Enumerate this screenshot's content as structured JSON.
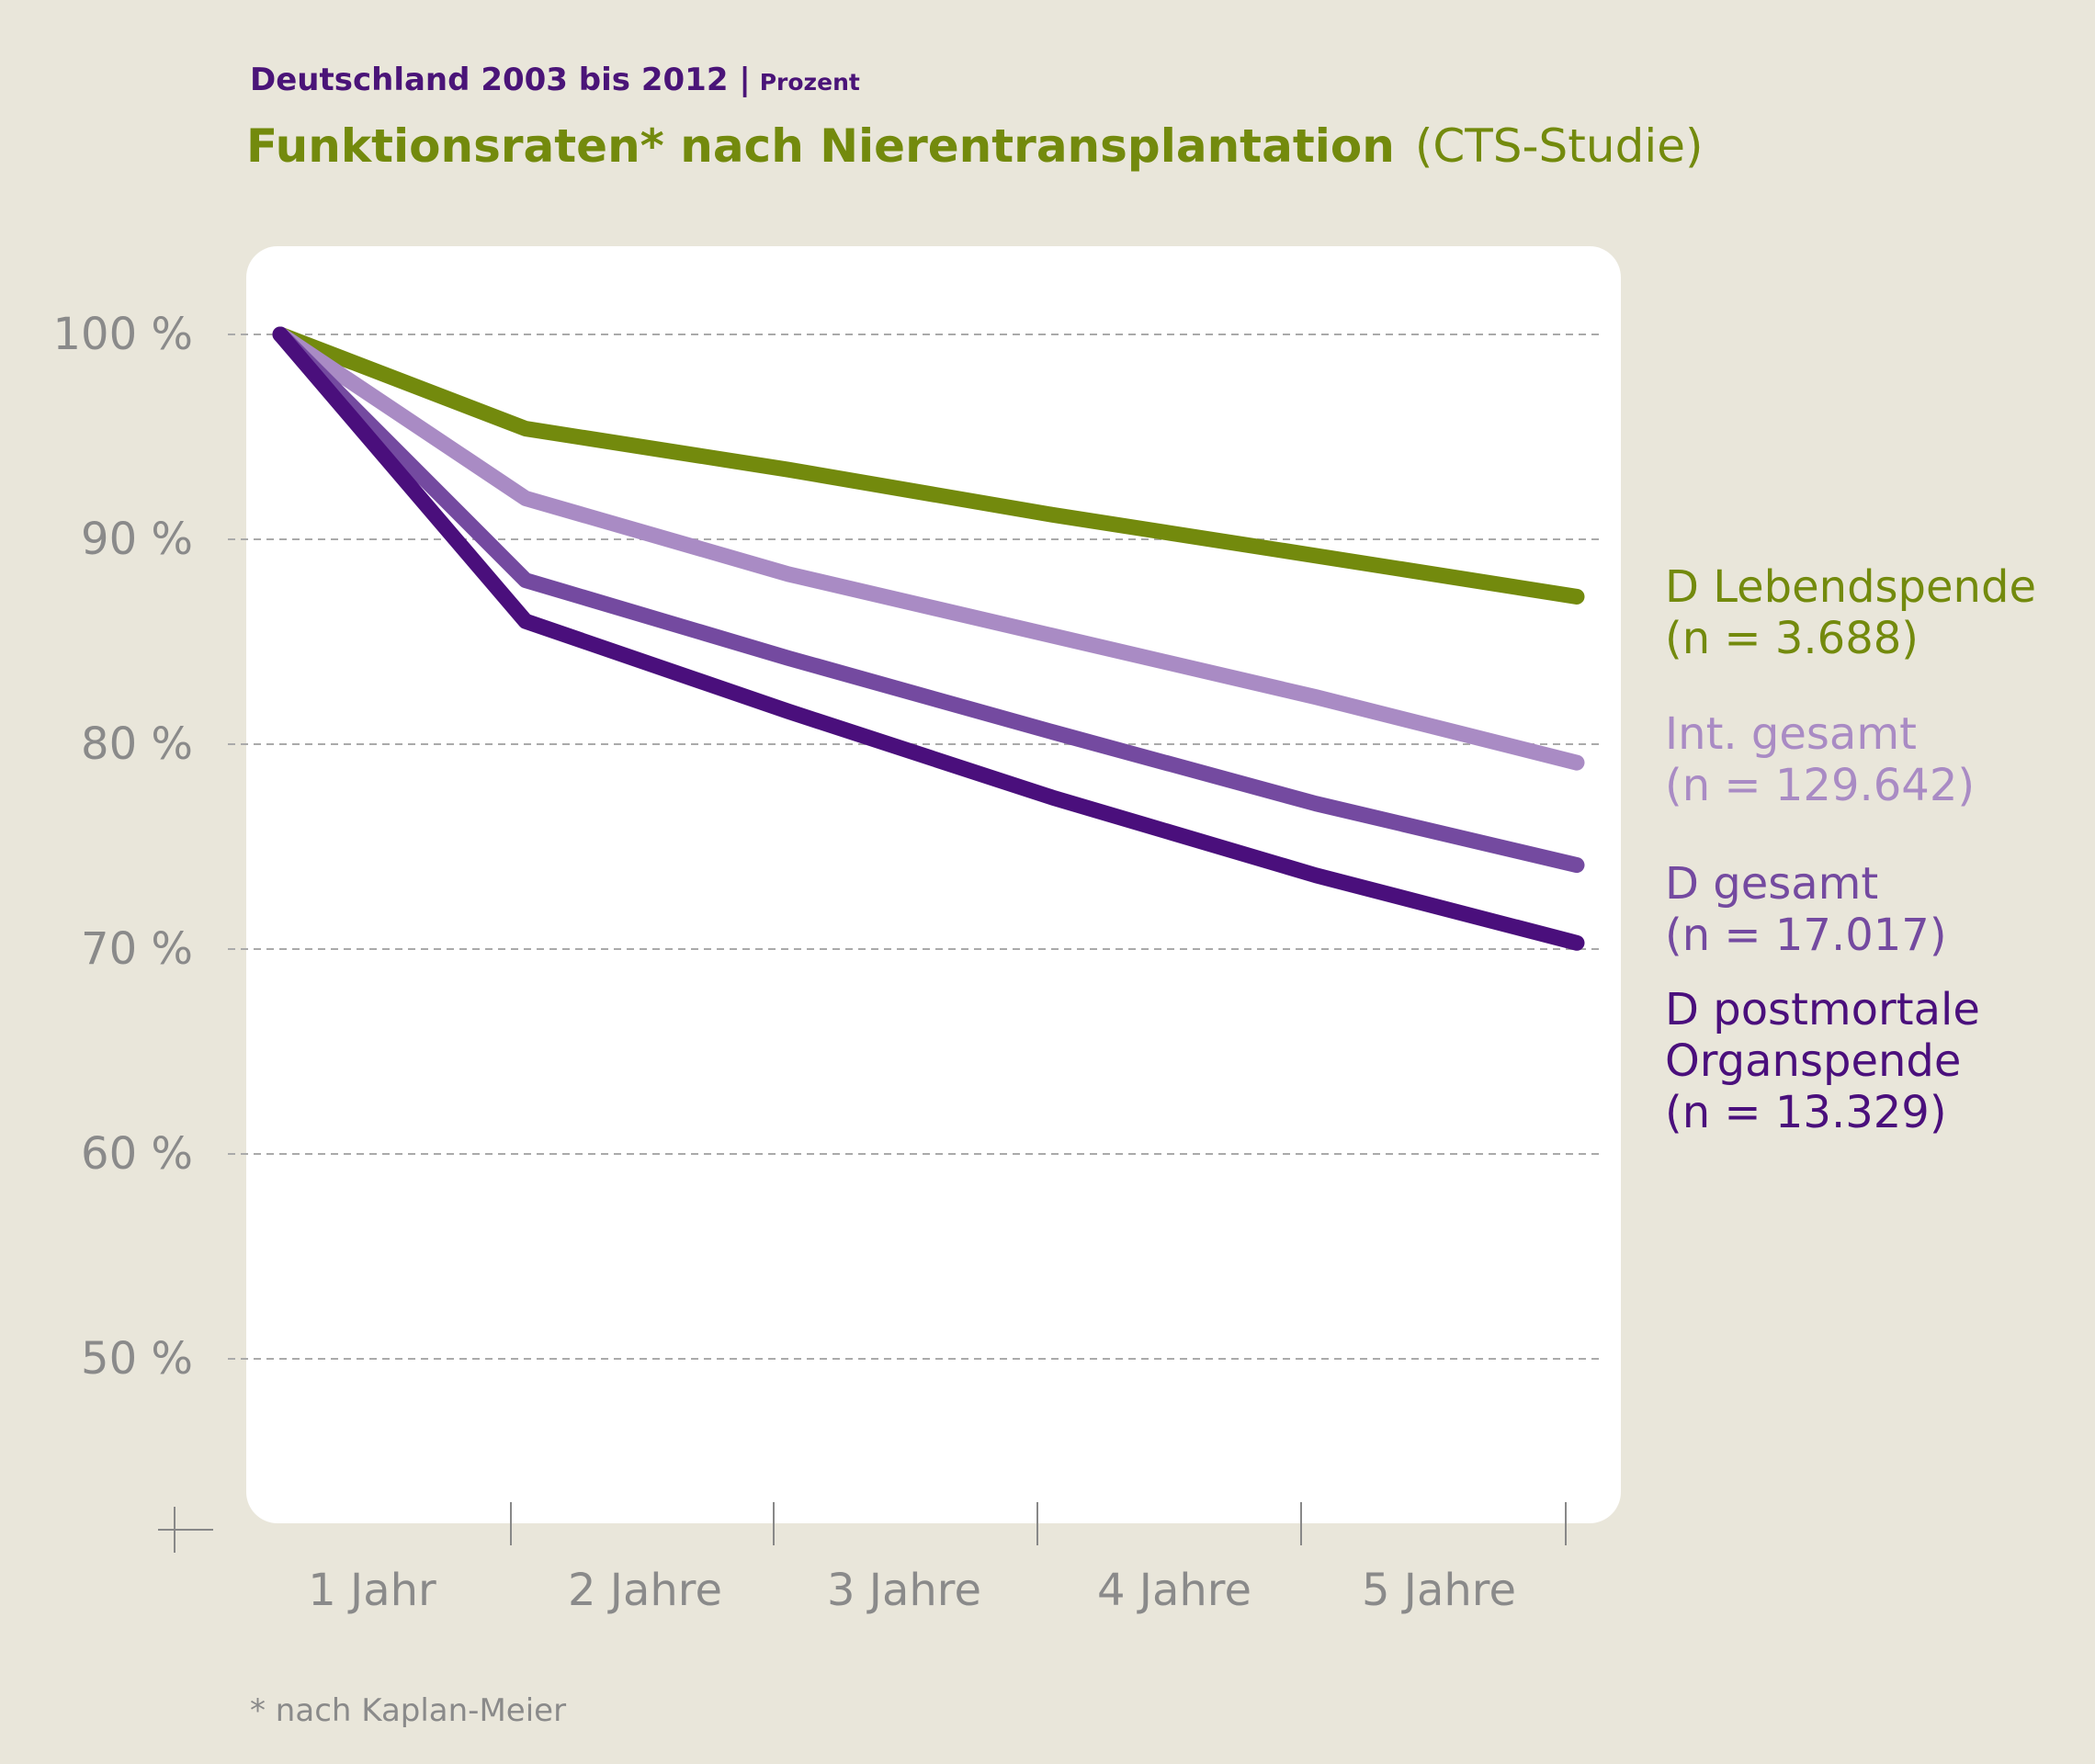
{
  "header": {
    "subtitle": "Deutschland 2003 bis 2012 |",
    "unit": "Prozent",
    "title_bold": "Funktionsraten* nach Nierentransplantation",
    "title_normal": "(CTS-Studie)"
  },
  "footnote": "* nach Kaplan-Meier",
  "colors": {
    "background": "#e9e6da",
    "plot_background": "#ffffff",
    "subtitle": "#4a1478",
    "title": "#738a0d",
    "axis_text": "#8a8a8a",
    "grid": "#aaaaaa"
  },
  "chart_data": {
    "type": "line",
    "y_ticks": [
      {
        "value": 100,
        "label": "100 %"
      },
      {
        "value": 90,
        "label": "90 %"
      },
      {
        "value": 80,
        "label": "80 %"
      },
      {
        "value": 70,
        "label": "70 %"
      },
      {
        "value": 60,
        "label": "60 %"
      },
      {
        "value": 50,
        "label": "50 %"
      }
    ],
    "ylim": [
      44,
      100
    ],
    "x_categories": [
      "1 Jahr",
      "2 Jahre",
      "3 Jahre",
      "4 Jahre",
      "5 Jahre"
    ],
    "x": [
      0,
      1,
      2,
      3,
      4,
      5
    ],
    "grid": true,
    "series": [
      {
        "name": "D Lebendspende",
        "n_label": "(n = 3.688)",
        "color": "#738a0d",
        "values": [
          100,
          95.4,
          93.4,
          91.2,
          89.2,
          87.2
        ]
      },
      {
        "name": "Int. gesamt",
        "n_label": "(n = 129.642)",
        "color": "#a98bc4",
        "values": [
          100,
          92.0,
          88.3,
          85.3,
          82.3,
          79.1
        ]
      },
      {
        "name": "D gesamt",
        "n_label": "(n = 17.017)",
        "color": "#744aa0",
        "values": [
          100,
          88.0,
          84.2,
          80.6,
          77.1,
          74.1
        ]
      },
      {
        "name": "D postmortale Organspende",
        "n_label": "(n = 13.329)",
        "color": "#4a0f7c",
        "values": [
          100,
          86.0,
          81.6,
          77.4,
          73.6,
          70.3
        ]
      }
    ]
  }
}
